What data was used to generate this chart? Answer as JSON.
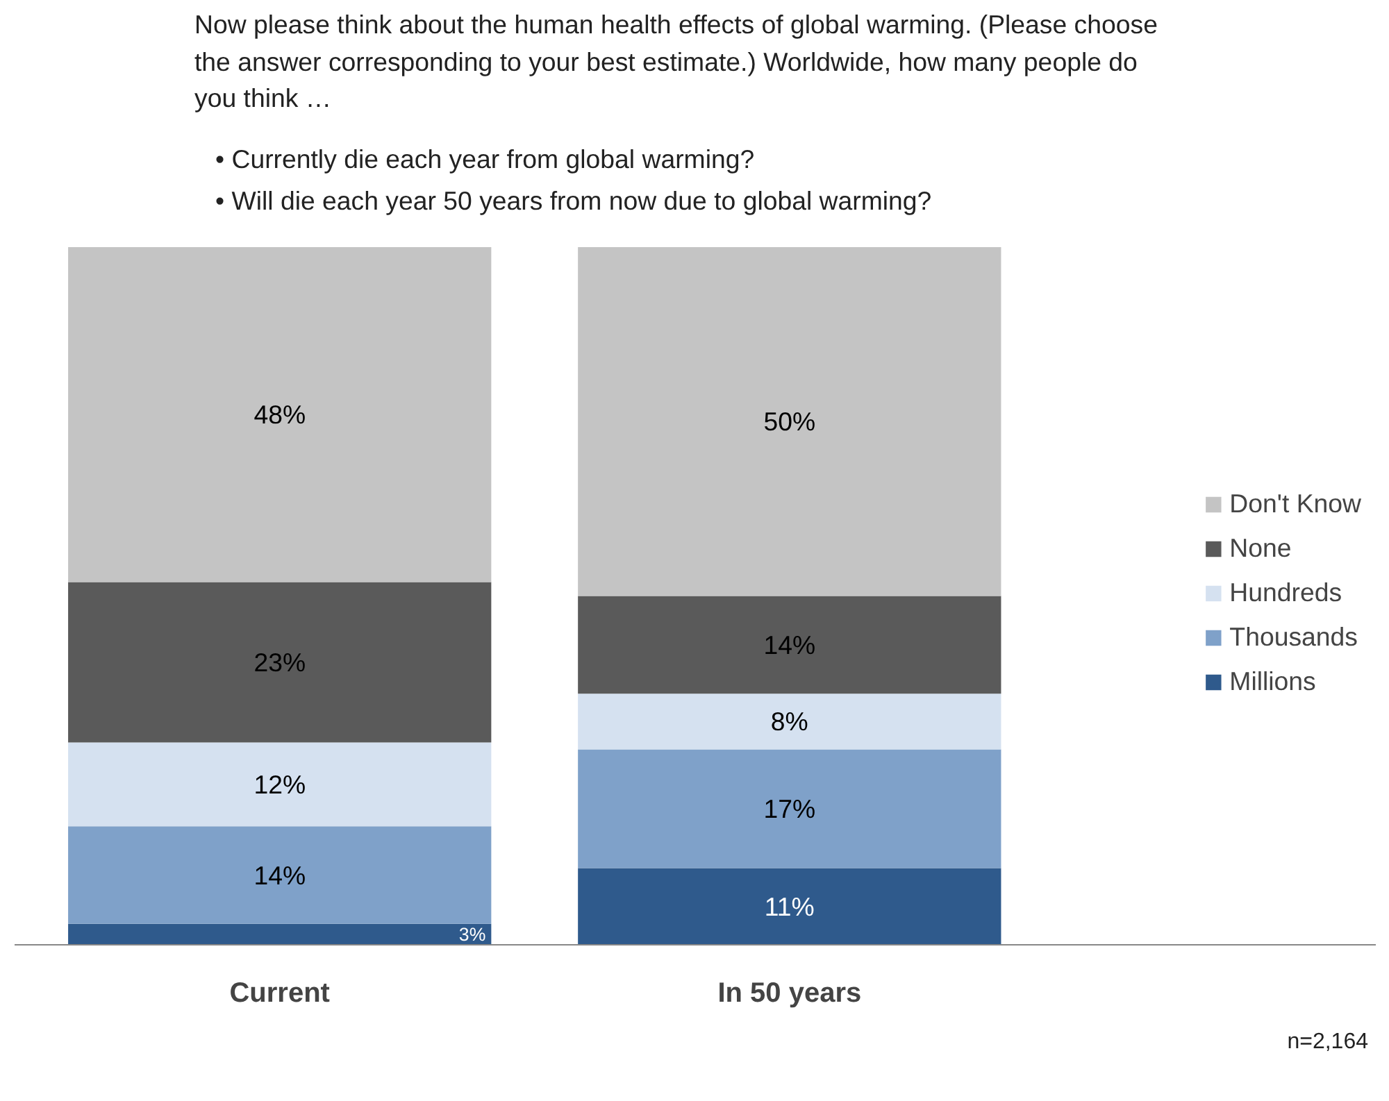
{
  "chart_data": {
    "type": "bar",
    "stacked": true,
    "title": "Now please think about the human health effects of global warming. (Please choose the answer corresponding to your best estimate.)  Worldwide, how many people do you think …",
    "subtitle": "• Currently die each year from global warming?\n• Will die each year 50 years from now due to global warming?",
    "categories": [
      "Current",
      "In 50 years"
    ],
    "series": [
      {
        "name": "Millions",
        "color": "#2f5a8c",
        "values": [
          3,
          11
        ],
        "value_labels": [
          "3%",
          "11%"
        ]
      },
      {
        "name": "Thousands",
        "color": "#7fa1c9",
        "values": [
          14,
          17
        ],
        "value_labels": [
          "14%",
          "17%"
        ]
      },
      {
        "name": "Hundreds",
        "color": "#d5e1f0",
        "values": [
          12,
          8
        ],
        "value_labels": [
          "12%",
          "8%"
        ]
      },
      {
        "name": "None",
        "color": "#5a5a5a",
        "values": [
          23,
          14
        ],
        "value_labels": [
          "23%",
          "14%"
        ]
      },
      {
        "name": "Don't Know",
        "color": "#c4c4c4",
        "values": [
          48,
          50
        ],
        "value_labels": [
          "48%",
          "50%"
        ]
      }
    ],
    "legend": "right",
    "annotations": [
      "n=2,164"
    ]
  }
}
